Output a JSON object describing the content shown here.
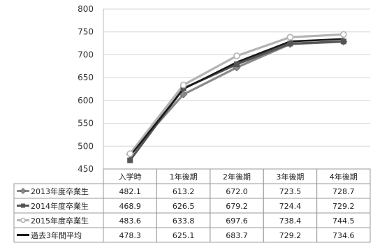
{
  "chart_data": {
    "type": "line",
    "title": "",
    "xlabel": "",
    "ylabel": "",
    "categories": [
      "入学時",
      "1年後期",
      "2年後期",
      "3年後期",
      "4年後期"
    ],
    "ylim": [
      450,
      800
    ],
    "yticks": [
      450,
      500,
      550,
      600,
      650,
      700,
      750,
      800
    ],
    "grid": true,
    "legend": "table-below",
    "series": [
      {
        "name": "2013年度卒業生",
        "values": [
          482.1,
          613.2,
          672.0,
          723.5,
          728.7
        ],
        "color": "#8a8a8a",
        "marker": "diamond"
      },
      {
        "name": "2014年度卒業生",
        "values": [
          468.9,
          626.5,
          679.2,
          724.4,
          729.2
        ],
        "color": "#555555",
        "marker": "square"
      },
      {
        "name": "2015年度卒業生",
        "values": [
          483.6,
          633.8,
          697.6,
          738.4,
          744.5
        ],
        "color": "#b3b3b3",
        "marker": "circle"
      },
      {
        "name": "過去3年間平均",
        "values": [
          478.3,
          625.1,
          683.7,
          729.2,
          734.6
        ],
        "color": "#1a1a1a",
        "marker": "none"
      }
    ],
    "table": {
      "rows": [
        [
          "482.1",
          "613.2",
          "672.0",
          "723.5",
          "728.7"
        ],
        [
          "468.9",
          "626.5",
          "679.2",
          "724.4",
          "729.2"
        ],
        [
          "483.6",
          "633.8",
          "697.6",
          "738.4",
          "744.5"
        ],
        [
          "478.3",
          "625.1",
          "683.7",
          "729.2",
          "734.6"
        ]
      ]
    }
  }
}
